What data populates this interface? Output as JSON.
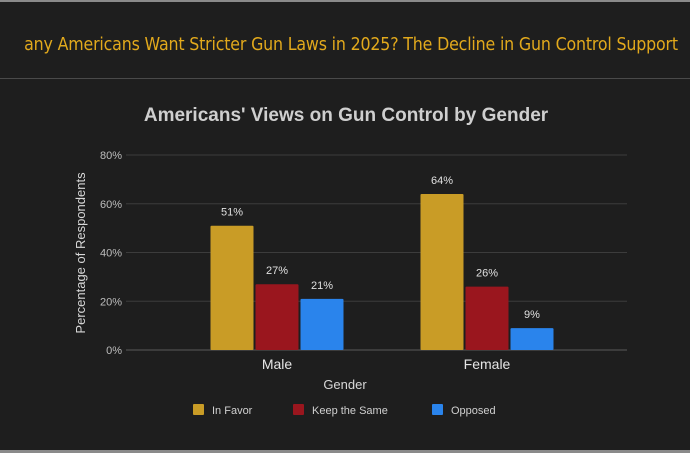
{
  "header": {
    "title": "any Americans Want Stricter Gun Laws in 2025? The Decline in Gun Control Support"
  },
  "chart_data": {
    "type": "bar",
    "title": "Americans' Views on Gun Control by Gender",
    "xlabel": "Gender",
    "ylabel": "Percentage of Respondents",
    "categories": [
      "Male",
      "Female"
    ],
    "series": [
      {
        "name": "In Favor",
        "values": [
          51,
          64
        ],
        "color": "#c99c26"
      },
      {
        "name": "Keep the Same",
        "values": [
          27,
          26
        ],
        "color": "#9a161e"
      },
      {
        "name": "Opposed",
        "values": [
          21,
          9
        ],
        "color": "#2a84ec"
      }
    ],
    "data_labels": [
      [
        "51%",
        "64%"
      ],
      [
        "27%",
        "26%"
      ],
      [
        "21%",
        "9%"
      ]
    ],
    "ylim": [
      0,
      80
    ],
    "yticks": [
      "0%",
      "20%",
      "40%",
      "60%",
      "80%"
    ],
    "grid": true,
    "legend": "bottom"
  }
}
